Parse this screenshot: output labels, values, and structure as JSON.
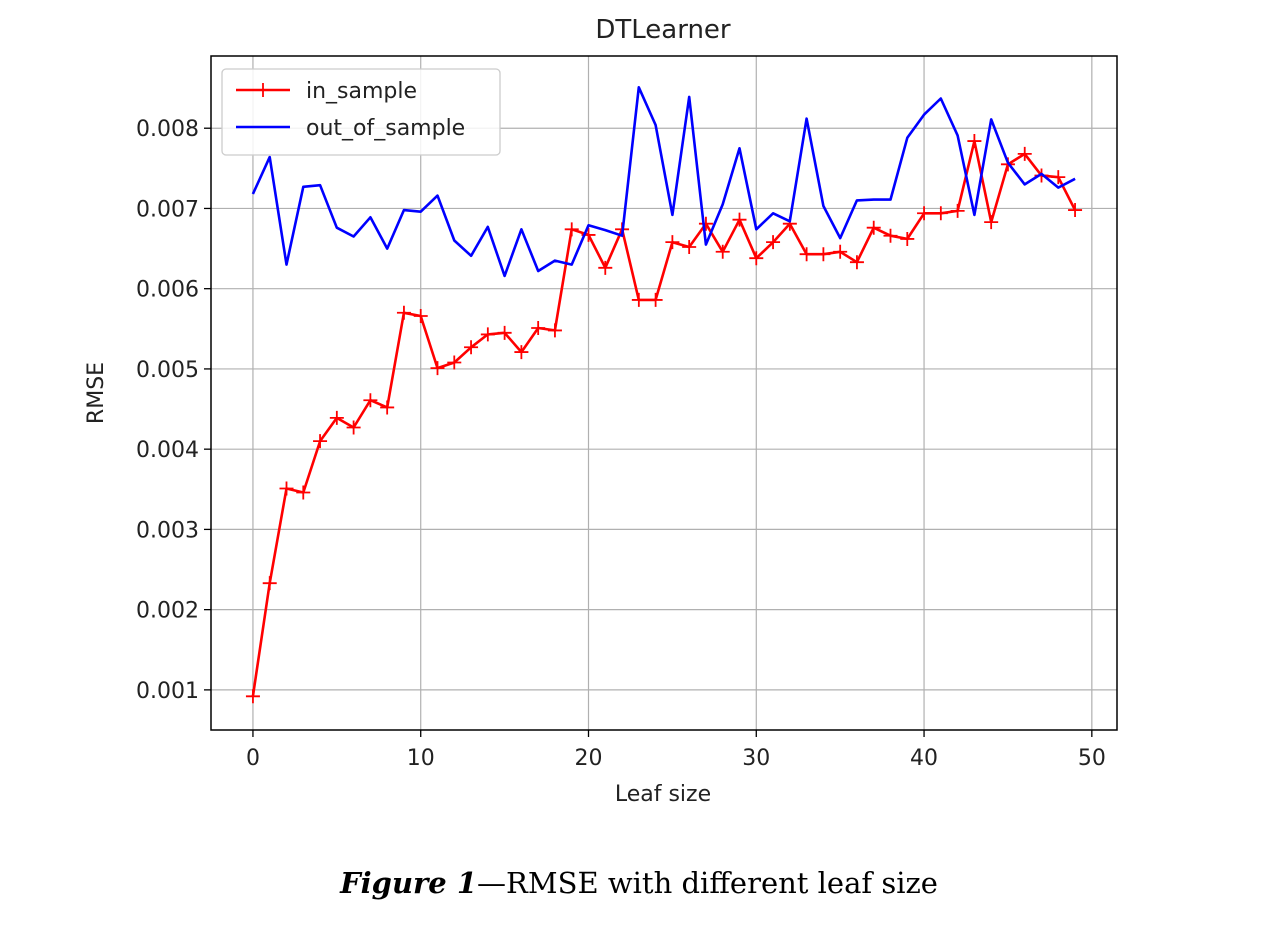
{
  "chart_data": {
    "type": "line",
    "title": "DTLearner",
    "xlabel": "Leaf size",
    "ylabel": "RMSE",
    "xlim": [
      -2.5,
      51.5
    ],
    "ylim": [
      0.0005,
      0.0089
    ],
    "xticks": [
      0,
      10,
      20,
      30,
      40,
      50
    ],
    "xtick_labels": [
      "0",
      "10",
      "20",
      "30",
      "40",
      "50"
    ],
    "yticks": [
      0.001,
      0.002,
      0.003,
      0.004,
      0.005,
      0.006,
      0.007,
      0.008
    ],
    "ytick_labels": [
      "0.001",
      "0.002",
      "0.003",
      "0.004",
      "0.005",
      "0.006",
      "0.007",
      "0.008"
    ],
    "grid": true,
    "legend_position": "top-left",
    "x": [
      0,
      1,
      2,
      3,
      4,
      5,
      6,
      7,
      8,
      9,
      10,
      11,
      12,
      13,
      14,
      15,
      16,
      17,
      18,
      19,
      20,
      21,
      22,
      23,
      24,
      25,
      26,
      27,
      28,
      29,
      30,
      31,
      32,
      33,
      34,
      35,
      36,
      37,
      38,
      39,
      40,
      41,
      42,
      43,
      44,
      45,
      46,
      47,
      48,
      49
    ],
    "series": [
      {
        "name": "in_sample",
        "color": "#ff0000",
        "marker": "+",
        "values": [
          0.00092,
          0.00233,
          0.00351,
          0.00346,
          0.0041,
          0.00439,
          0.00427,
          0.00461,
          0.00452,
          0.0057,
          0.00566,
          0.00501,
          0.00508,
          0.00527,
          0.00543,
          0.00545,
          0.00521,
          0.00551,
          0.00548,
          0.00674,
          0.00667,
          0.00626,
          0.00674,
          0.00586,
          0.00586,
          0.00658,
          0.00652,
          0.00681,
          0.00646,
          0.00686,
          0.00638,
          0.00658,
          0.00681,
          0.00643,
          0.00643,
          0.00646,
          0.00633,
          0.00676,
          0.00666,
          0.00662,
          0.00694,
          0.00694,
          0.00697,
          0.00784,
          0.00683,
          0.00755,
          0.00768,
          0.00741,
          0.00739,
          0.00698
        ]
      },
      {
        "name": "out_of_sample",
        "color": "#0000ff",
        "marker": "none",
        "values": [
          0.00718,
          0.00764,
          0.0063,
          0.00727,
          0.00729,
          0.00676,
          0.00665,
          0.00689,
          0.0065,
          0.00698,
          0.00696,
          0.00716,
          0.0066,
          0.00641,
          0.00677,
          0.00616,
          0.00674,
          0.00622,
          0.00635,
          0.0063,
          0.00679,
          0.00673,
          0.00666,
          0.00851,
          0.00804,
          0.00692,
          0.00839,
          0.00655,
          0.00705,
          0.00775,
          0.00674,
          0.00694,
          0.00684,
          0.00812,
          0.00703,
          0.00663,
          0.0071,
          0.00711,
          0.00711,
          0.00788,
          0.00817,
          0.00837,
          0.00791,
          0.00692,
          0.00811,
          0.00757,
          0.0073,
          0.00743,
          0.00726,
          0.00737
        ]
      }
    ]
  },
  "caption": {
    "label": "Figure 1",
    "text": "—RMSE with different leaf size"
  }
}
